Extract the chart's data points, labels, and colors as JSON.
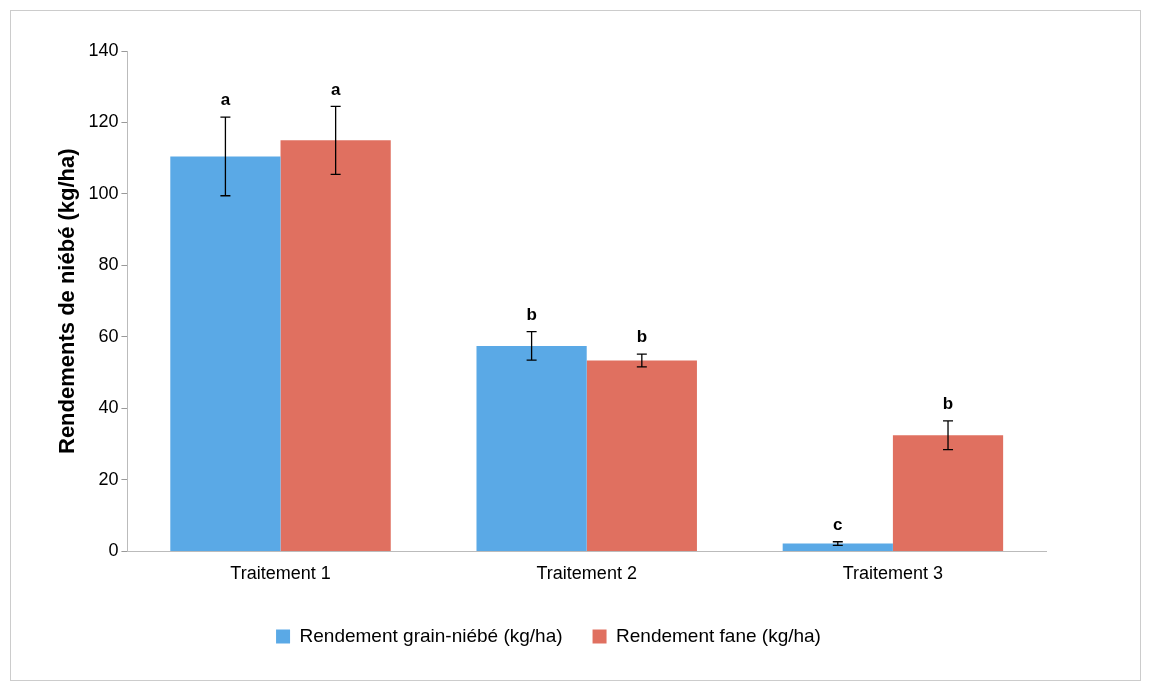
{
  "chart_data": {
    "type": "bar",
    "ylabel": "Rendements de niébé (kg/ha)",
    "categories": [
      "Traitement 1",
      "Traitement 2",
      "Traitement 3"
    ],
    "series": [
      {
        "name": "Rendement grain-niébé (kg/ha)",
        "color": "#5aa9e6",
        "values": [
          110.5,
          57.5,
          2.2
        ],
        "errors": [
          11,
          4,
          0.5
        ]
      },
      {
        "name": "Rendement fane (kg/ha)",
        "color": "#e07060",
        "values": [
          115,
          53.4,
          32.5
        ],
        "errors": [
          9.5,
          1.8,
          4
        ]
      }
    ],
    "ylim": [
      0,
      140
    ],
    "yticks": [
      0,
      20,
      40,
      60,
      80,
      100,
      120,
      140
    ],
    "grid": false,
    "legend": "bottom",
    "annotations": [
      "a",
      "a",
      "b",
      "b",
      "c",
      "b"
    ]
  }
}
